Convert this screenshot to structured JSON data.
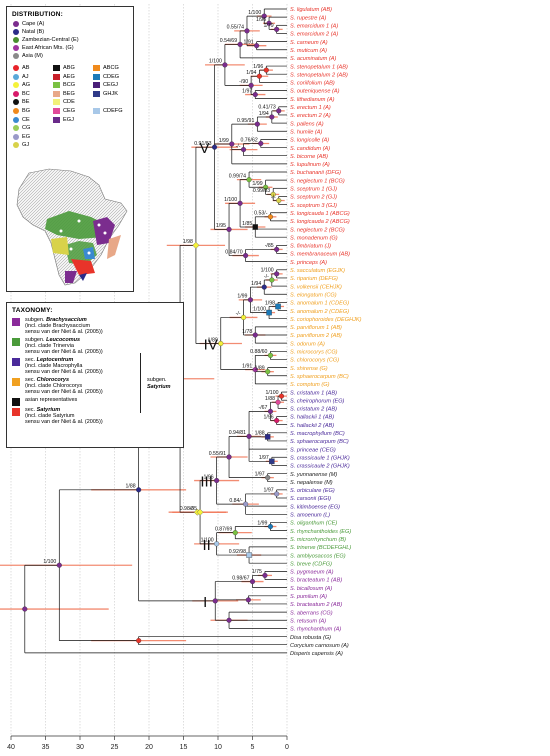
{
  "distribution": {
    "title": "DISTRIBUTION:",
    "regions": [
      {
        "label": "Cape (A)",
        "color": "#7b2d8e"
      },
      {
        "label": "Natal (B)",
        "color": "#2b2b88"
      },
      {
        "label": "Zambezian-Central (E)",
        "color": "#4a8f2f"
      },
      {
        "label": "East African Mts. (G)",
        "color": "#a035a0"
      },
      {
        "label": "Asia (M)",
        "color": "#8a8a8a"
      }
    ],
    "combos": [
      {
        "label": "AB",
        "color": "#e8232a"
      },
      {
        "label": "ABG",
        "color": "#111111"
      },
      {
        "label": "ABCG",
        "color": "#f08a1c"
      },
      {
        "label": "AJ",
        "color": "#5aa8d8"
      },
      {
        "label": "AEG",
        "color": "#c8202a"
      },
      {
        "label": "CDEG",
        "color": "#1c7ab8"
      },
      {
        "label": "AG",
        "color": "#f5f23a"
      },
      {
        "label": "BCG",
        "color": "#7ac142"
      },
      {
        "label": "CEGJ",
        "color": "#4a1f78"
      },
      {
        "label": "BC",
        "color": "#d81b6a"
      },
      {
        "label": "BEG",
        "color": "#e8a888"
      },
      {
        "label": "GHJK",
        "color": "#2f3a88"
      },
      {
        "label": "BE",
        "color": "#111111"
      },
      {
        "label": "CDE",
        "color": "#f2f07a"
      },
      {
        "label": "",
        "color": ""
      },
      {
        "label": "BG",
        "color": "#f08a1c"
      },
      {
        "label": "CEG",
        "color": "#e04a9a"
      },
      {
        "label": "CDEFG",
        "color": "#a8c8e8"
      },
      {
        "label": "CE",
        "color": "#3a8ad0"
      },
      {
        "label": "EGJ",
        "color": "#6a2a8a"
      },
      {
        "label": "",
        "color": ""
      },
      {
        "label": "CG",
        "color": "#9acd5a"
      },
      {
        "label": "",
        "color": ""
      },
      {
        "label": "",
        "color": ""
      },
      {
        "label": "EG",
        "color": "#9a9ac8"
      },
      {
        "label": "",
        "color": ""
      },
      {
        "label": "",
        "color": ""
      },
      {
        "label": "GJ",
        "color": "#d8d24a"
      },
      {
        "label": "",
        "color": ""
      },
      {
        "label": "",
        "color": ""
      }
    ]
  },
  "taxonomy": {
    "title": "TAXONOMY:",
    "subgenus_label": "subgen.",
    "subgenus_name": "Satyrium",
    "entries": [
      {
        "color": "#8a2a9a",
        "rank": "subgen.",
        "name": "Brachysaccium",
        "note1": "(incl. clade Brachysaccium",
        "note2": "sensu van der Niet & al. (2005))"
      },
      {
        "color": "#4a9a3a",
        "rank": "subgen.",
        "name": "Leucocomus",
        "note1": "(incl. clade Trinervia",
        "note2": "sensu van der Niet & al. (2005))"
      },
      {
        "color": "#4a2a9a",
        "rank": "sec.",
        "name": "Leptocentrum",
        "note1": "(incl. clade Macrophylla",
        "note2": "sensu van der Niet & al. (2005))"
      },
      {
        "color": "#f0a020",
        "rank": "sec.",
        "name": "Chlorocorys",
        "note1": "(incl. clade Chlorocorys",
        "note2": "sensu van der Niet & al. (2005))"
      },
      {
        "color": "#111111",
        "rank": "",
        "name": "asian representatives",
        "note1": "",
        "note2": ""
      },
      {
        "color": "#e8342a",
        "rank": "sec.",
        "name": "Satyrium",
        "note1": "(incl. clade Satyrium",
        "note2": "sensu van der Niet & al. (2005))"
      }
    ]
  },
  "axis": {
    "ticks": [
      "40",
      "35",
      "30",
      "25",
      "20",
      "15",
      "10",
      "5",
      "0"
    ]
  },
  "clades": [
    "V",
    "IV",
    "III",
    "II",
    "I"
  ],
  "supports": [
    "1/100",
    "1/96",
    "1/79",
    "0.55/74",
    "0.54/69",
    "1/91",
    "1/100",
    "1/96",
    "1/94",
    "-/90",
    "1/97",
    "0.41/73",
    "1/94",
    "0.95/91",
    "0.76/62",
    "1/99",
    "0.91/83",
    "-/-",
    "0.99/74",
    "1/99",
    "0.99/83",
    "-/-",
    "1/100",
    "0.53/-",
    "1/85",
    "1/95",
    "1/98",
    "-/85",
    "0.84/70",
    "1/100",
    "-/-",
    "1/94",
    "1/99",
    "1/98",
    "1/100",
    "-/-",
    "1/78",
    "1/89",
    "0.88/60",
    "1/91",
    "1/89",
    "0.99/87",
    "1/100",
    "1/88",
    "-/67",
    "1/96",
    "0.94/81",
    "1/88",
    "0.55/91",
    "1/97",
    "1/97",
    "1/96",
    "1/88",
    "1/97",
    "0.84/-",
    "-/-",
    "0.98/85",
    "1/99",
    "0.87/69",
    "1/100",
    "0.92/98",
    "1/100",
    "1/75",
    "0.98/67"
  ],
  "taxa": [
    {
      "name": "S. ligulatum (AB)",
      "color": "#e8342a"
    },
    {
      "name": "S. rupestre (A)",
      "color": "#e8342a"
    },
    {
      "name": "S. emarcidum 1 (A)",
      "color": "#e8342a"
    },
    {
      "name": "S. emarcidum 2 (A)",
      "color": "#e8342a"
    },
    {
      "name": "S. carneum (A)",
      "color": "#e8342a"
    },
    {
      "name": "S. muticum (A)",
      "color": "#e8342a"
    },
    {
      "name": "S. acuminatum (A)",
      "color": "#e8342a"
    },
    {
      "name": "S. stenopetalum 1 (AB)",
      "color": "#e8342a"
    },
    {
      "name": "S. stenopetalum 2 (AB)",
      "color": "#e8342a"
    },
    {
      "name": "S. coriifolium (AB)",
      "color": "#e8342a"
    },
    {
      "name": "S. outeniquense (A)",
      "color": "#e8342a"
    },
    {
      "name": "S. lithedianum (A)",
      "color": "#e8342a"
    },
    {
      "name": "S. erectum 1 (A)",
      "color": "#e8342a"
    },
    {
      "name": "S. erectum 2 (A)",
      "color": "#e8342a"
    },
    {
      "name": "S. pallens (A)",
      "color": "#e8342a"
    },
    {
      "name": "S. humile (A)",
      "color": "#e8342a"
    },
    {
      "name": "S. longicolle (A)",
      "color": "#e8342a"
    },
    {
      "name": "S. candidum (A)",
      "color": "#e8342a"
    },
    {
      "name": "S. bicorne (AB)",
      "color": "#e8342a"
    },
    {
      "name": "S. lupulinum (A)",
      "color": "#e8342a"
    },
    {
      "name": "S. buchananii (DFG)",
      "color": "#e8342a"
    },
    {
      "name": "S. neglectum 1 (BCG)",
      "color": "#e8342a"
    },
    {
      "name": "S. sceptrum 1 (GJ)",
      "color": "#e8342a"
    },
    {
      "name": "S. sceptrum 2 (GJ)",
      "color": "#e8342a"
    },
    {
      "name": "S. sceptrum 3 (GJ)",
      "color": "#e8342a"
    },
    {
      "name": "S. longicauda 1 (ABCG)",
      "color": "#e8342a"
    },
    {
      "name": "S. longicauda 2 (ABCG)",
      "color": "#e8342a"
    },
    {
      "name": "S. neglectum 2 (BCG)",
      "color": "#e8342a"
    },
    {
      "name": "S. monadenum (G)",
      "color": "#e8342a"
    },
    {
      "name": "S. fimbriatum (J)",
      "color": "#e8342a"
    },
    {
      "name": "S. membranaceum (AB)",
      "color": "#e8342a"
    },
    {
      "name": "S. princeps (A)",
      "color": "#e8342a"
    },
    {
      "name": "S. sacculatum (EGJK)",
      "color": "#f0a020"
    },
    {
      "name": "S. riparium (DEFG)",
      "color": "#f0a020"
    },
    {
      "name": "S. volkensii (CEHJK)",
      "color": "#f0a020"
    },
    {
      "name": "S. elongatum (CG)",
      "color": "#f0a020"
    },
    {
      "name": "S. anomalum 1 (CDEG)",
      "color": "#f0a020"
    },
    {
      "name": "S. anomalum 2 (CDEG)",
      "color": "#f0a020"
    },
    {
      "name": "S. coriophoroides (DEGHJK)",
      "color": "#f0a020"
    },
    {
      "name": "S. parviflorum 1 (AB)",
      "color": "#f0a020"
    },
    {
      "name": "S. parviflorum 2 (AB)",
      "color": "#f0a020"
    },
    {
      "name": "S. odorum (A)",
      "color": "#f0a020"
    },
    {
      "name": "S. microcorys (CG)",
      "color": "#f0a020"
    },
    {
      "name": "S. chlorocorys (CG)",
      "color": "#f0a020"
    },
    {
      "name": "S. shirense (G)",
      "color": "#f0a020"
    },
    {
      "name": "S. sphaerocarpum (BC)",
      "color": "#f0a020"
    },
    {
      "name": "S. comptum (G)",
      "color": "#f0a020"
    },
    {
      "name": "S. cristatum 1 (AB)",
      "color": "#4a2a9a"
    },
    {
      "name": "S. cheirophorum (EG)",
      "color": "#4a2a9a"
    },
    {
      "name": "S. cristatum 2 (AB)",
      "color": "#4a2a9a"
    },
    {
      "name": "S. hallackii 1 (AB)",
      "color": "#4a2a9a"
    },
    {
      "name": "S. hallackii 2 (AB)",
      "color": "#4a2a9a"
    },
    {
      "name": "S. macrophyllum (BC)",
      "color": "#4a2a9a"
    },
    {
      "name": "S. sphaerocarpum (BC)",
      "color": "#4a2a9a"
    },
    {
      "name": "S. princeae (CEG)",
      "color": "#4a2a9a"
    },
    {
      "name": "S. crassicaule 1 (GHJK)",
      "color": "#4a2a9a"
    },
    {
      "name": "S. crassicaule 2 (GHJK)",
      "color": "#4a2a9a"
    },
    {
      "name": "S. yunnanense (M)",
      "color": "#222222"
    },
    {
      "name": "S. nepalense (M)",
      "color": "#222222"
    },
    {
      "name": "S. orbiculare (EG)",
      "color": "#4a2a9a"
    },
    {
      "name": "S. carsonii (EGI)",
      "color": "#4a2a9a"
    },
    {
      "name": "S. kitimboense (EG)",
      "color": "#4a2a9a"
    },
    {
      "name": "S. amoenum (L)",
      "color": "#4a2a9a"
    },
    {
      "name": "S. oliganthum (CE)",
      "color": "#4a9a3a"
    },
    {
      "name": "S. rhynchanthoides (EG)",
      "color": "#4a9a3a"
    },
    {
      "name": "S. microrrhynchum (B)",
      "color": "#4a9a3a"
    },
    {
      "name": "S. trinerve (BCDEFGHL)",
      "color": "#4a9a3a"
    },
    {
      "name": "S. amblyosaccos (EG)",
      "color": "#4a9a3a"
    },
    {
      "name": "S. breve (CDFG)",
      "color": "#4a9a3a"
    },
    {
      "name": "S. pygmaeum (A)",
      "color": "#8a2a9a"
    },
    {
      "name": "S. bracteatum 1 (AB)",
      "color": "#8a2a9a"
    },
    {
      "name": "S. bicallosum (A)",
      "color": "#8a2a9a"
    },
    {
      "name": "S. pumilum (A)",
      "color": "#8a2a9a"
    },
    {
      "name": "S. bracteatum 2 (AB)",
      "color": "#8a2a9a"
    },
    {
      "name": "S. aberrans (CG)",
      "color": "#8a2a9a"
    },
    {
      "name": "S. retusum (A)",
      "color": "#8a2a9a"
    },
    {
      "name": "S. rhynchanthum (A)",
      "color": "#8a2a9a"
    },
    {
      "name": "Disa robusta (G)",
      "color": "#222222"
    },
    {
      "name": "Corycium carnosum (A)",
      "color": "#222222"
    },
    {
      "name": "Disperis capensis (A)",
      "color": "#222222"
    }
  ]
}
